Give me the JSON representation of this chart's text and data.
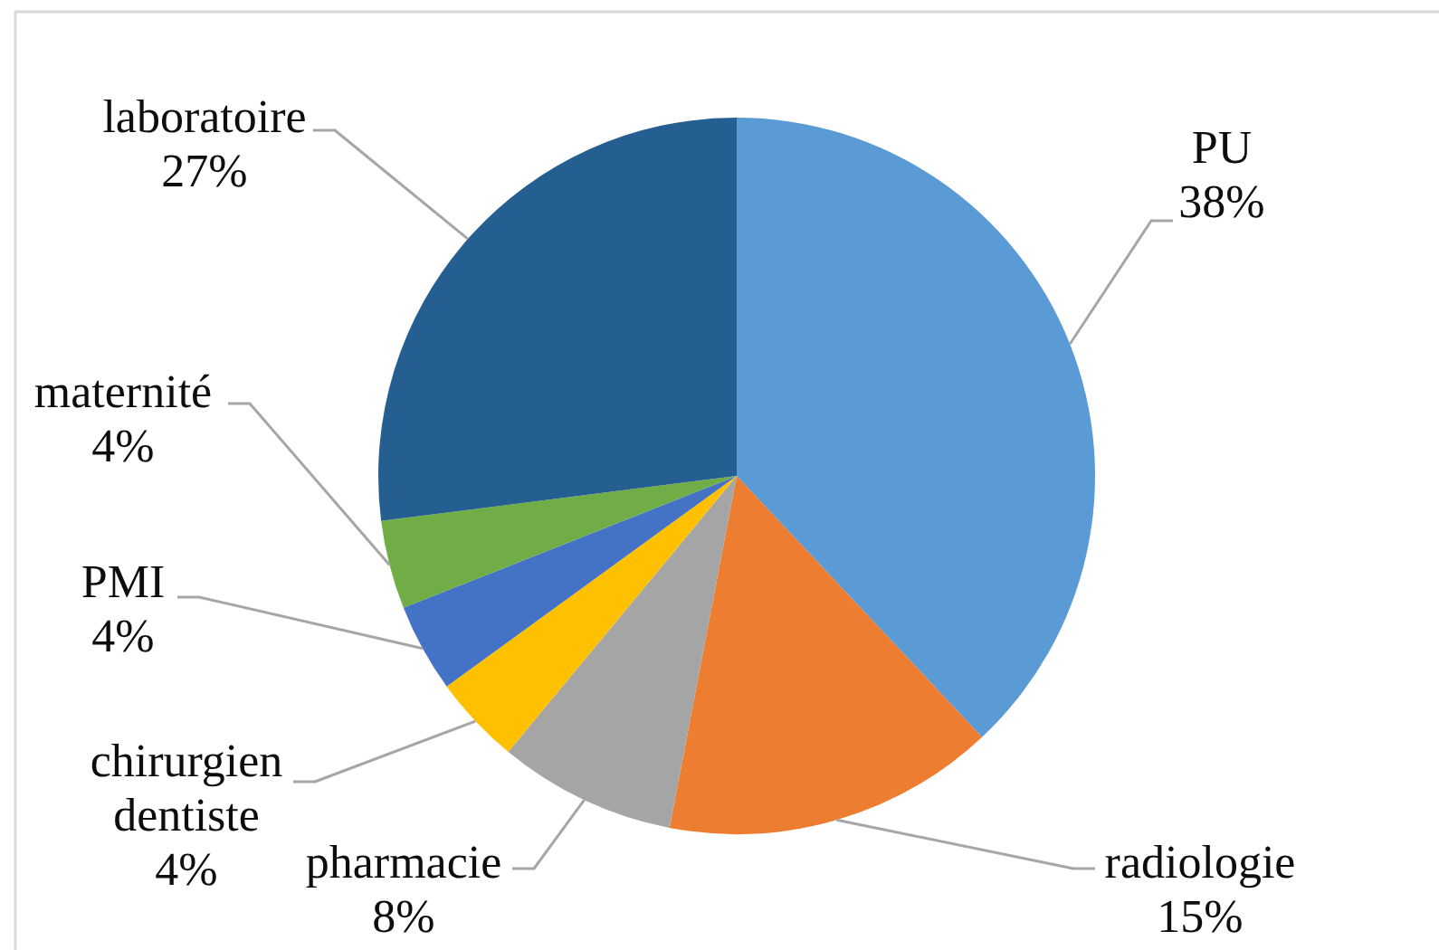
{
  "chart_data": {
    "type": "pie",
    "categories": [
      "PU",
      "radiologie",
      "pharmacie",
      "chirurgien dentiste",
      "PMI",
      "maternité",
      "laboratoire"
    ],
    "values": [
      38,
      15,
      8,
      4,
      4,
      4,
      27
    ],
    "value_labels": [
      "38%",
      "15%",
      "8%",
      "4%",
      "4%",
      "4%",
      "27%"
    ],
    "colors": [
      "#5b9bd5",
      "#ed7d31",
      "#a5a5a5",
      "#ffc000",
      "#4472c4",
      "#70ad47",
      "#255e91"
    ],
    "legend": false
  }
}
